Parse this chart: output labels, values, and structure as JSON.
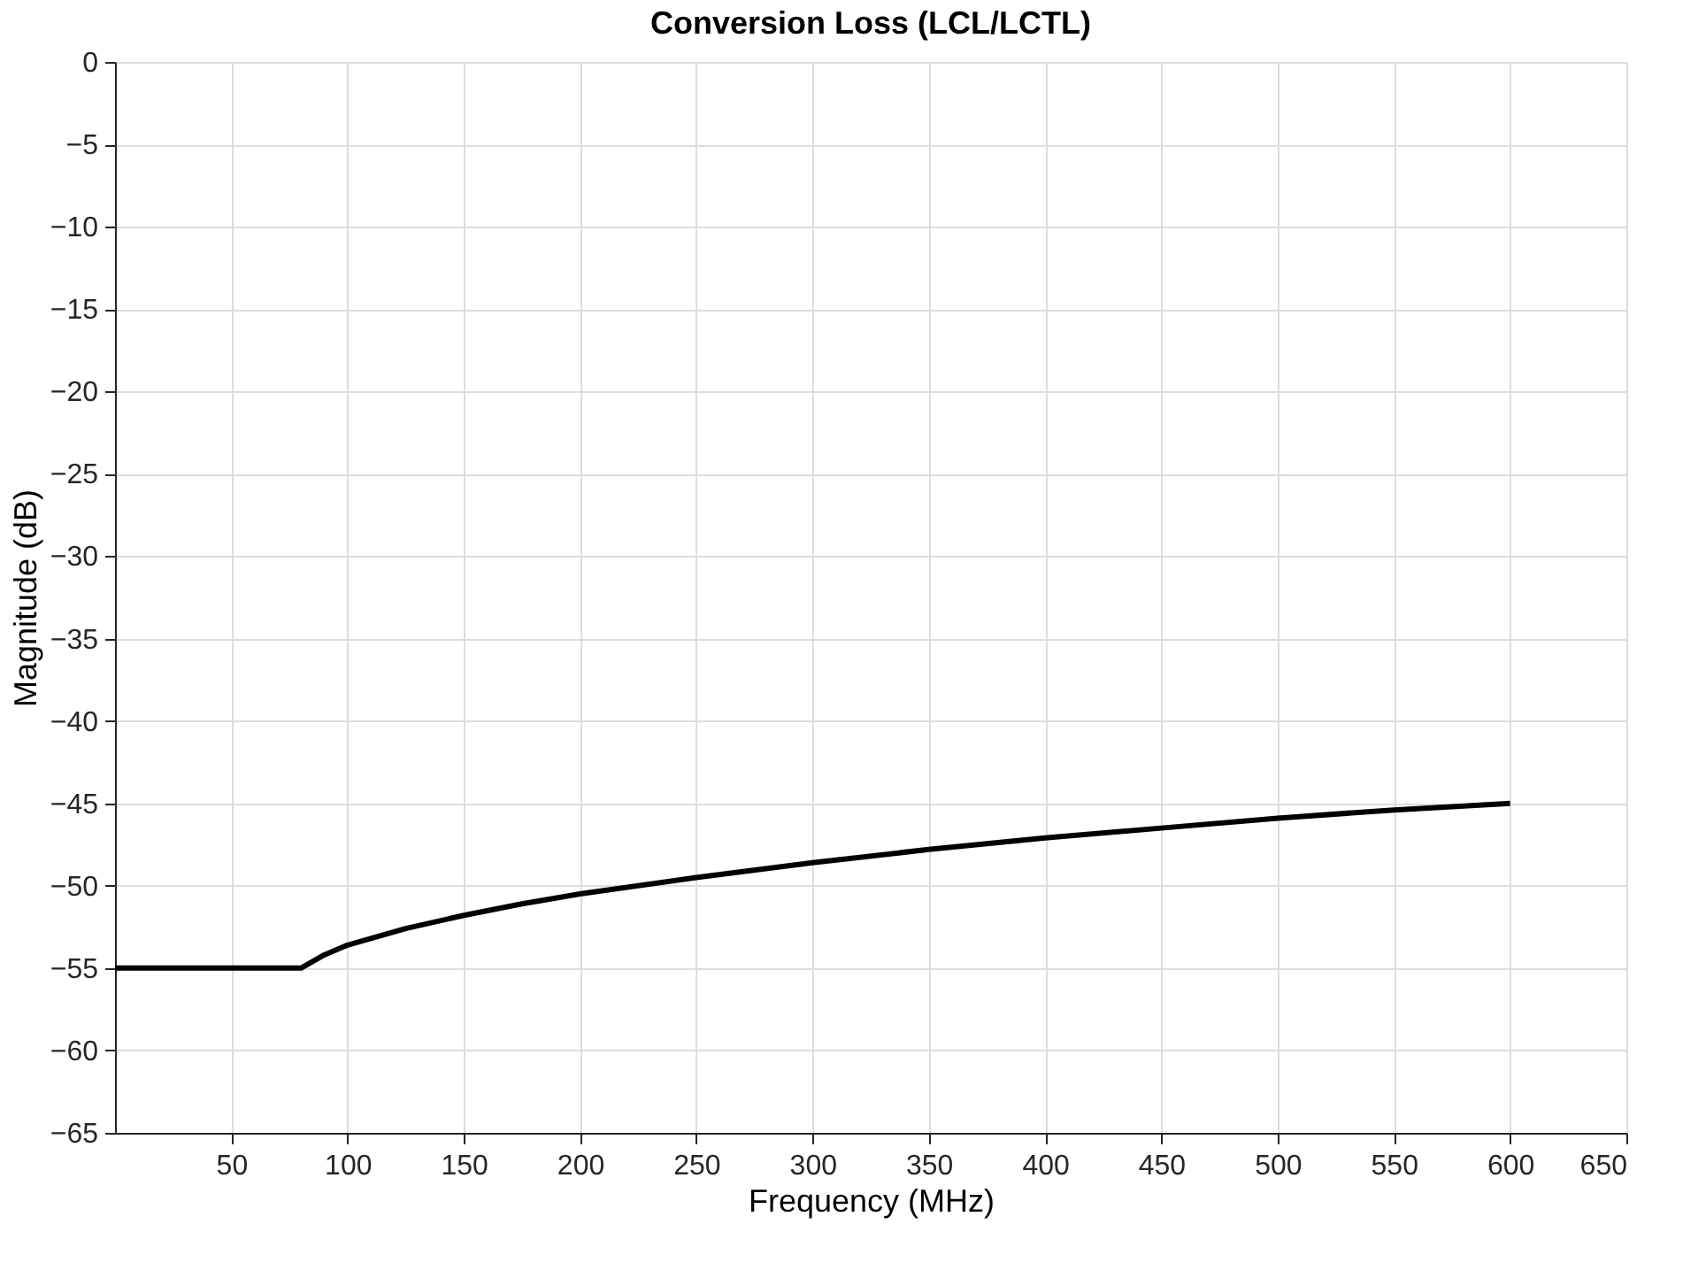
{
  "chart_data": {
    "type": "line",
    "title": "Conversion Loss (LCL/LCTL)",
    "xlabel": "Frequency (MHz)",
    "ylabel": "Magnitude (dB)",
    "x": [
      0,
      40,
      80,
      90,
      100,
      125,
      150,
      175,
      200,
      250,
      300,
      350,
      400,
      450,
      500,
      550,
      600
    ],
    "series": [
      {
        "color": "#000000",
        "values": [
          -55,
          -55,
          -55,
          -54.2,
          -53.6,
          -52.6,
          -51.8,
          -51.1,
          -50.5,
          -49.5,
          -48.6,
          -47.8,
          -47.1,
          -46.5,
          -45.9,
          -45.4,
          -45
        ]
      }
    ],
    "xlim": [
      0,
      650
    ],
    "xticks": [
      50,
      100,
      150,
      200,
      250,
      300,
      350,
      400,
      450,
      500,
      550,
      600,
      650
    ],
    "ylim": [
      -65,
      0
    ],
    "yticks": [
      0,
      -5,
      -10,
      -15,
      -20,
      -25,
      -30,
      -35,
      -40,
      -45,
      -50,
      -55,
      -60,
      -65
    ],
    "grid": true,
    "legend": false,
    "marker": "none",
    "line_style": "solid"
  }
}
